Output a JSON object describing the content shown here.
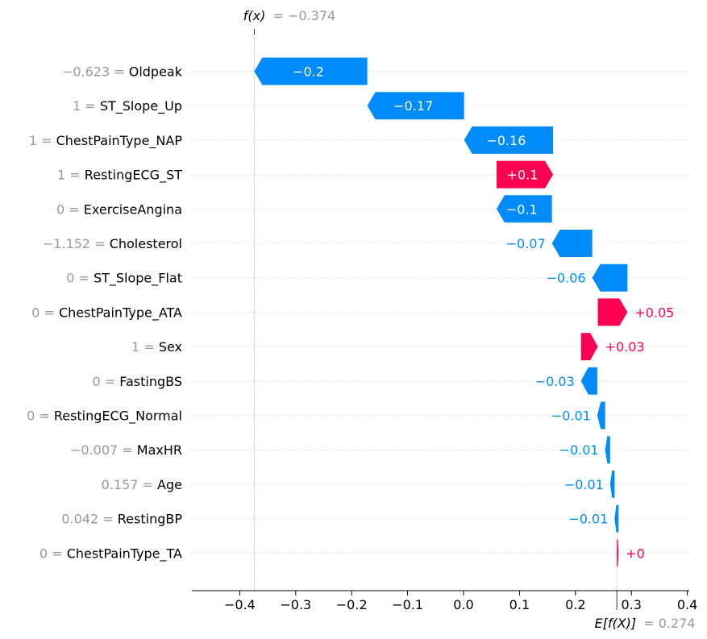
{
  "colors": {
    "negative": "#008bfb",
    "positive": "#ff0051",
    "feature_value": "#999999",
    "feature_name": "#000000",
    "grid": "#cccccc"
  },
  "chart_data": {
    "type": "waterfall",
    "fx_label": "f(x)",
    "fx_value": "= −0.374",
    "efx_label": "E[f(X)]",
    "efx_value": "= 0.274",
    "fx": -0.374,
    "base_value": 0.274,
    "xlim": [
      -0.49,
      0.41
    ],
    "xticks": [
      -0.4,
      -0.3,
      -0.2,
      -0.1,
      0.0,
      0.1,
      0.2,
      0.3,
      0.4
    ],
    "xtick_labels": [
      "−0.4",
      "−0.3",
      "−0.2",
      "−0.1",
      "0.0",
      "0.1",
      "0.2",
      "0.3",
      "0.4"
    ],
    "features": [
      {
        "value": "−0.623",
        "name": "Oldpeak",
        "start": -0.172,
        "end": -0.374,
        "label": "−0.2"
      },
      {
        "value": "1",
        "name": "ST_Slope_Up",
        "start": 0.001,
        "end": -0.172,
        "label": "−0.17"
      },
      {
        "value": "1",
        "name": "ChestPainType_NAP",
        "start": 0.16,
        "end": 0.001,
        "label": "−0.16"
      },
      {
        "value": "1",
        "name": "RestingECG_ST",
        "start": 0.059,
        "end": 0.16,
        "label": "+0.1"
      },
      {
        "value": "0",
        "name": "ExerciseAngina",
        "start": 0.158,
        "end": 0.059,
        "label": "−0.1"
      },
      {
        "value": "−1.152",
        "name": "Cholesterol",
        "start": 0.23,
        "end": 0.158,
        "label": "−0.07"
      },
      {
        "value": "0",
        "name": "ST_Slope_Flat",
        "start": 0.293,
        "end": 0.23,
        "label": "−0.06"
      },
      {
        "value": "0",
        "name": "ChestPainType_ATA",
        "start": 0.24,
        "end": 0.293,
        "label": "+0.05"
      },
      {
        "value": "1",
        "name": "Sex",
        "start": 0.21,
        "end": 0.24,
        "label": "+0.03"
      },
      {
        "value": "0",
        "name": "FastingBS",
        "start": 0.239,
        "end": 0.21,
        "label": "−0.03"
      },
      {
        "value": "0",
        "name": "RestingECG_Normal",
        "start": 0.253,
        "end": 0.239,
        "label": "−0.01"
      },
      {
        "value": "−0.007",
        "name": "MaxHR",
        "start": 0.262,
        "end": 0.253,
        "label": "−0.01"
      },
      {
        "value": "0.157",
        "name": "Age",
        "start": 0.27,
        "end": 0.262,
        "label": "−0.01"
      },
      {
        "value": "0.042",
        "name": "RestingBP",
        "start": 0.277,
        "end": 0.27,
        "label": "−0.01"
      },
      {
        "value": "0",
        "name": "ChestPainType_TA",
        "start": 0.274,
        "end": 0.277,
        "label": "+0"
      }
    ]
  }
}
